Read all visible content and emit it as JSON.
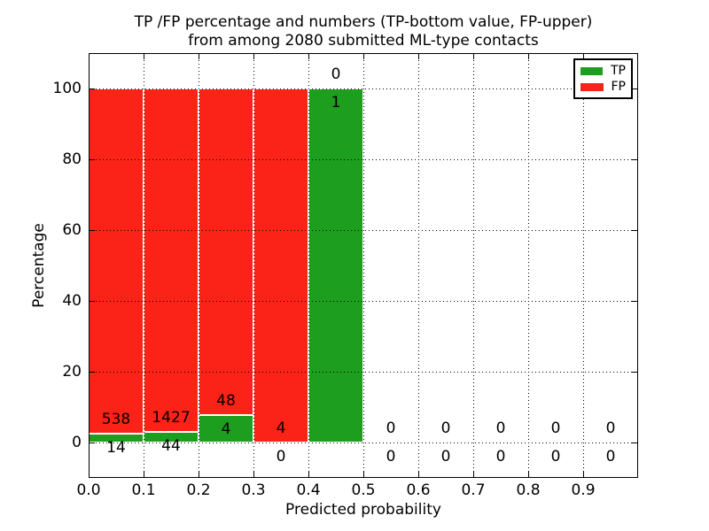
{
  "title": {
    "line1": "TP /FP percentage and numbers (TP-bottom value, FP-upper)",
    "line2": "from among 2080 submitted ML-type contacts"
  },
  "axes": {
    "xlabel": "Predicted probability",
    "ylabel": "Percentage",
    "xtick_labels": [
      "0.0",
      "0.1",
      "0.2",
      "0.3",
      "0.4",
      "0.5",
      "0.6",
      "0.7",
      "0.8",
      "0.9"
    ],
    "ytick_labels": [
      "0",
      "20",
      "40",
      "60",
      "80",
      "100"
    ],
    "yticks": [
      0,
      20,
      40,
      60,
      80,
      100
    ],
    "xlim": [
      0.0,
      1.0
    ],
    "ylim": [
      -10,
      110
    ],
    "grid": "dotted"
  },
  "legend": [
    {
      "label": "TP"
    },
    {
      "label": "FP"
    }
  ],
  "colors": {
    "tp_green": "#1e9e1e",
    "fp_red": "#fb2318",
    "grid": "#000000",
    "bar_edge": "#ffffff",
    "text": "#000000",
    "background": "#ffffff"
  },
  "chart_data": {
    "type": "bar",
    "stacked": true,
    "total_contacts": 2080,
    "bin_width": 0.1,
    "label_offset_pct": 4,
    "bins": [
      {
        "range": "0.0-0.1",
        "x_start": 0.0,
        "has_bar": true,
        "tp_count": 14,
        "fp_count": 538,
        "tp_pct": 2.54,
        "fp_pct": 97.46
      },
      {
        "range": "0.1-0.2",
        "x_start": 0.1,
        "has_bar": true,
        "tp_count": 44,
        "fp_count": 1427,
        "tp_pct": 2.99,
        "fp_pct": 97.01
      },
      {
        "range": "0.2-0.3",
        "x_start": 0.2,
        "has_bar": true,
        "tp_count": 4,
        "fp_count": 48,
        "tp_pct": 7.69,
        "fp_pct": 92.31
      },
      {
        "range": "0.3-0.4",
        "x_start": 0.3,
        "has_bar": true,
        "tp_count": 0,
        "fp_count": 4,
        "tp_pct": 0,
        "fp_pct": 100
      },
      {
        "range": "0.4-0.5",
        "x_start": 0.4,
        "has_bar": true,
        "tp_count": 1,
        "fp_count": 0,
        "tp_pct": 100,
        "fp_pct": 0
      },
      {
        "range": "0.5-0.6",
        "x_start": 0.5,
        "has_bar": false,
        "tp_count": 0,
        "fp_count": 0,
        "tp_pct": 0,
        "fp_pct": 0
      },
      {
        "range": "0.6-0.7",
        "x_start": 0.6,
        "has_bar": false,
        "tp_count": 0,
        "fp_count": 0,
        "tp_pct": 0,
        "fp_pct": 0
      },
      {
        "range": "0.7-0.8",
        "x_start": 0.7,
        "has_bar": false,
        "tp_count": 0,
        "fp_count": 0,
        "tp_pct": 0,
        "fp_pct": 0
      },
      {
        "range": "0.8-0.9",
        "x_start": 0.8,
        "has_bar": false,
        "tp_count": 0,
        "fp_count": 0,
        "tp_pct": 0,
        "fp_pct": 0
      },
      {
        "range": "0.9-1.0",
        "x_start": 0.9,
        "has_bar": false,
        "tp_count": 0,
        "fp_count": 0,
        "tp_pct": 0,
        "fp_pct": 0
      }
    ]
  }
}
